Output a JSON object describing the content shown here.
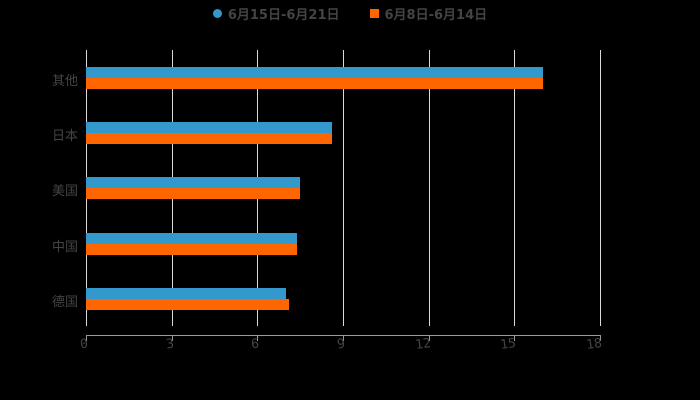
{
  "legend": [
    {
      "label": "6月15日-6月21日",
      "color": "#3399cc",
      "marker": "circle"
    },
    {
      "label": "6月8日-6月14日",
      "color": "#ff6600",
      "marker": "square"
    }
  ],
  "axis": {
    "ticks": [
      "0",
      "3",
      "6",
      "9",
      "12",
      "15",
      "18"
    ]
  },
  "categories": [
    "其他",
    "日本",
    "美国",
    "中国",
    "德国"
  ],
  "chart_data": {
    "type": "bar",
    "orientation": "horizontal",
    "title": "",
    "xlabel": "",
    "ylabel": "",
    "categories": [
      "其他",
      "日本",
      "美国",
      "中国",
      "德国"
    ],
    "series": [
      {
        "name": "6月15日-6月21日",
        "color": "#3399cc",
        "values": [
          16.0,
          8.6,
          7.5,
          7.4,
          7.0
        ]
      },
      {
        "name": "6月8日-6月14日",
        "color": "#ff6600",
        "values": [
          16.0,
          8.6,
          7.5,
          7.4,
          7.1
        ]
      }
    ],
    "xlim": [
      0,
      18
    ],
    "xticks": [
      0,
      3,
      6,
      9,
      12,
      15,
      18
    ],
    "grid": true,
    "legend_position": "top"
  }
}
